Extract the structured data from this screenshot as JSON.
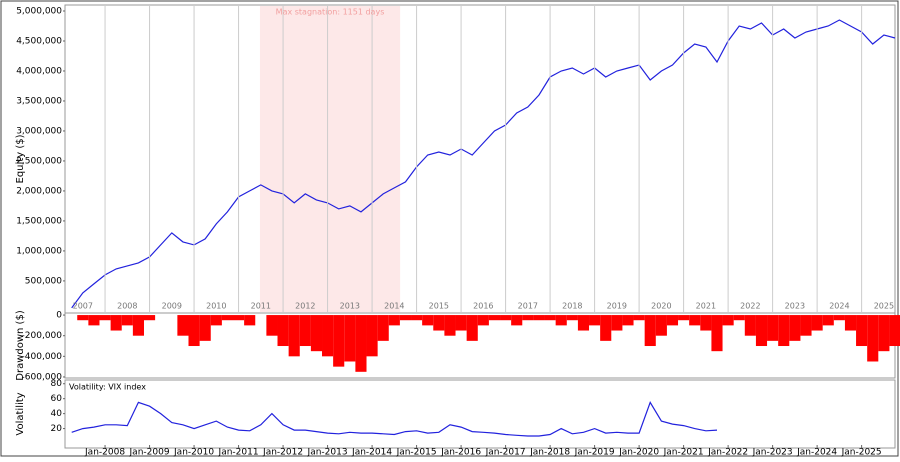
{
  "chart_data": [
    {
      "type": "line",
      "y_label": "Equity ($)",
      "annotation": {
        "text": "Max stagnation: 1151 days",
        "x": [
          2011.48,
          2014.63
        ],
        "color": "#fde8e8"
      },
      "xlim": [
        2007.1,
        2025.75
      ],
      "xticks": [
        {
          "value": 2007.5,
          "label": "2007"
        },
        {
          "value": 2008.5,
          "label": "2008"
        },
        {
          "value": 2009.5,
          "label": "2009"
        },
        {
          "value": 2010.5,
          "label": "2010"
        },
        {
          "value": 2011.5,
          "label": "2011"
        },
        {
          "value": 2012.5,
          "label": "2012"
        },
        {
          "value": 2013.5,
          "label": "2013"
        },
        {
          "value": 2014.5,
          "label": "2014"
        },
        {
          "value": 2015.5,
          "label": "2015"
        },
        {
          "value": 2016.5,
          "label": "2016"
        },
        {
          "value": 2017.5,
          "label": "2017"
        },
        {
          "value": 2018.5,
          "label": "2018"
        },
        {
          "value": 2019.5,
          "label": "2019"
        },
        {
          "value": 2020.5,
          "label": "2020"
        },
        {
          "value": 2021.5,
          "label": "2021"
        },
        {
          "value": 2022.5,
          "label": "2022"
        },
        {
          "value": 2023.5,
          "label": "2023"
        },
        {
          "value": 2024.5,
          "label": "2024"
        },
        {
          "value": 2025.5,
          "label": "2025"
        }
      ],
      "ylim": [
        -35000,
        5100000
      ],
      "yticks": [
        {
          "value": 500000,
          "label": "500,000"
        },
        {
          "value": 1000000,
          "label": "1,000,000"
        },
        {
          "value": 1500000,
          "label": "1,500,000"
        },
        {
          "value": 2000000,
          "label": "2,000,000"
        },
        {
          "value": 2500000,
          "label": "2,500,000"
        },
        {
          "value": 3000000,
          "label": "3,000,000"
        },
        {
          "value": 3500000,
          "label": "3,500,000"
        },
        {
          "value": 4000000,
          "label": "4,000,000"
        },
        {
          "value": 4500000,
          "label": "4,500,000"
        },
        {
          "value": 5000000,
          "label": "5,000,000"
        }
      ],
      "x": [
        2007.25,
        2007.5,
        2007.75,
        2008,
        2008.25,
        2008.5,
        2008.75,
        2009,
        2009.25,
        2009.5,
        2009.75,
        2010,
        2010.25,
        2010.5,
        2010.75,
        2011,
        2011.25,
        2011.5,
        2011.75,
        2012,
        2012.25,
        2012.5,
        2012.75,
        2013,
        2013.25,
        2013.5,
        2013.75,
        2014,
        2014.25,
        2014.5,
        2014.75,
        2015,
        2015.25,
        2015.5,
        2015.75,
        2016,
        2016.25,
        2016.5,
        2016.75,
        2017,
        2017.25,
        2017.5,
        2017.75,
        2018,
        2018.25,
        2018.5,
        2018.75,
        2019,
        2019.25,
        2019.5,
        2019.75,
        2020,
        2020.25,
        2020.5,
        2020.75,
        2021,
        2021.25,
        2021.5,
        2021.75,
        2022,
        2022.25,
        2022.5,
        2022.75,
        2023,
        2023.25,
        2023.5,
        2023.75,
        2024,
        2024.25,
        2024.5,
        2024.75,
        2025,
        2025.25,
        2025.5,
        2025.75
      ],
      "series": [
        {
          "color": "#2222dd",
          "values": [
            50000,
            300000,
            450000,
            600000,
            700000,
            750000,
            800000,
            900000,
            1100000,
            1300000,
            1150000,
            1100000,
            1200000,
            1450000,
            1650000,
            1900000,
            2000000,
            2100000,
            2000000,
            1950000,
            1800000,
            1950000,
            1850000,
            1800000,
            1700000,
            1750000,
            1650000,
            1800000,
            1950000,
            2050000,
            2150000,
            2400000,
            2600000,
            2650000,
            2600000,
            2700000,
            2600000,
            2800000,
            3000000,
            3100000,
            3300000,
            3400000,
            3600000,
            3900000,
            4000000,
            4050000,
            3950000,
            4050000,
            3900000,
            4000000,
            4050000,
            4100000,
            3850000,
            4000000,
            4100000,
            4300000,
            4450000,
            4400000,
            4150000,
            4500000,
            4750000,
            4700000,
            4800000,
            4600000,
            4700000,
            4550000,
            4650000,
            4700000,
            4750000,
            4850000,
            4750000,
            4650000,
            4450000,
            4600000,
            4550000
          ]
        }
      ]
    },
    {
      "type": "bar",
      "y_label": "Drawdown ($)",
      "xlim": [
        2007.1,
        2025.75
      ],
      "ylim": [
        -610000,
        20000
      ],
      "yticks": [
        {
          "value": 0,
          "label": "0"
        },
        {
          "value": -200000,
          "label": "-200,000"
        },
        {
          "value": -400000,
          "label": "-400,000"
        },
        {
          "value": -600000,
          "label": "-600,000"
        }
      ],
      "x": [
        2007.25,
        2007.5,
        2007.75,
        2008,
        2008.25,
        2008.5,
        2008.75,
        2009,
        2009.25,
        2009.5,
        2009.75,
        2010,
        2010.25,
        2010.5,
        2010.75,
        2011,
        2011.25,
        2011.5,
        2011.75,
        2012,
        2012.25,
        2012.5,
        2012.75,
        2013,
        2013.25,
        2013.5,
        2013.75,
        2014,
        2014.25,
        2014.5,
        2014.75,
        2015,
        2015.25,
        2015.5,
        2015.75,
        2016,
        2016.25,
        2016.5,
        2016.75,
        2017,
        2017.25,
        2017.5,
        2017.75,
        2018,
        2018.25,
        2018.5,
        2018.75,
        2019,
        2019.25,
        2019.5,
        2019.75,
        2020,
        2020.25,
        2020.5,
        2020.75,
        2021,
        2021.25,
        2021.5,
        2021.75,
        2022,
        2022.25,
        2022.5,
        2022.75,
        2023,
        2023.25,
        2023.5,
        2023.75,
        2024,
        2024.25,
        2024.5,
        2024.75,
        2025,
        2025.25,
        2025.5,
        2025.75
      ],
      "series": [
        {
          "color": "#ff0000",
          "values": [
            0,
            -50000,
            -100000,
            -50000,
            -150000,
            -100000,
            -200000,
            -50000,
            0,
            0,
            -200000,
            -300000,
            -250000,
            -100000,
            -50000,
            -50000,
            -100000,
            0,
            -200000,
            -300000,
            -400000,
            -300000,
            -350000,
            -400000,
            -500000,
            -450000,
            -550000,
            -400000,
            -250000,
            -100000,
            -50000,
            -50000,
            -100000,
            -150000,
            -200000,
            -150000,
            -250000,
            -100000,
            -50000,
            -50000,
            -100000,
            -50000,
            -50000,
            -50000,
            -100000,
            -50000,
            -150000,
            -100000,
            -250000,
            -150000,
            -100000,
            -50000,
            -300000,
            -200000,
            -100000,
            -50000,
            -100000,
            -150000,
            -350000,
            -100000,
            -50000,
            -200000,
            -300000,
            -250000,
            -300000,
            -250000,
            -200000,
            -150000,
            -100000,
            -50000,
            -150000,
            -300000,
            -450000,
            -350000,
            -300000
          ]
        }
      ]
    },
    {
      "type": "line",
      "y_label": "Volatility",
      "xlim": [
        2007.1,
        2025.75
      ],
      "xticks": [
        {
          "value": 2008,
          "label": "Jan-2008"
        },
        {
          "value": 2009,
          "label": "Jan-2009"
        },
        {
          "value": 2010,
          "label": "Jan-2010"
        },
        {
          "value": 2011,
          "label": "Jan-2011"
        },
        {
          "value": 2012,
          "label": "Jan-2012"
        },
        {
          "value": 2013,
          "label": "Jan-2013"
        },
        {
          "value": 2014,
          "label": "Jan-2014"
        },
        {
          "value": 2015,
          "label": "Jan-2015"
        },
        {
          "value": 2016,
          "label": "Jan-2016"
        },
        {
          "value": 2017,
          "label": "Jan-2017"
        },
        {
          "value": 2018,
          "label": "Jan-2018"
        },
        {
          "value": 2019,
          "label": "Jan-2019"
        },
        {
          "value": 2020,
          "label": "Jan-2020"
        },
        {
          "value": 2021,
          "label": "Jan-2021"
        },
        {
          "value": 2022,
          "label": "Jan-2022"
        },
        {
          "value": 2023,
          "label": "Jan-2023"
        },
        {
          "value": 2024,
          "label": "Jan-2024"
        },
        {
          "value": 2025,
          "label": "Jan-2025"
        }
      ],
      "ylim": [
        -6,
        85
      ],
      "yticks": [
        20,
        40,
        60,
        80
      ],
      "x": [
        2007.25,
        2007.5,
        2007.75,
        2008,
        2008.25,
        2008.5,
        2008.75,
        2009,
        2009.25,
        2009.5,
        2009.75,
        2010,
        2010.25,
        2010.5,
        2010.75,
        2011,
        2011.25,
        2011.5,
        2011.75,
        2012,
        2012.25,
        2012.5,
        2012.75,
        2013,
        2013.25,
        2013.5,
        2013.75,
        2014,
        2014.25,
        2014.5,
        2014.75,
        2015,
        2015.25,
        2015.5,
        2015.75,
        2016,
        2016.25,
        2016.5,
        2016.75,
        2017,
        2017.25,
        2017.5,
        2017.75,
        2018,
        2018.25,
        2018.5,
        2018.75,
        2019,
        2019.25,
        2019.5,
        2019.75,
        2020,
        2020.25,
        2020.5,
        2020.75,
        2021,
        2021.25,
        2021.5,
        2021.75,
        2022,
        2022.25,
        2022.5,
        2022.75,
        2023,
        2023.25,
        2023.5,
        2023.75,
        2024,
        2024.25,
        2024.5,
        2024.75,
        2025,
        2025.25,
        2025.5,
        2025.75
      ],
      "series": [
        {
          "name": "Volatility: VIX index",
          "color": "#2222dd",
          "values": [
            15,
            20,
            22,
            25,
            25,
            24,
            55,
            50,
            40,
            28,
            25,
            20,
            25,
            30,
            22,
            18,
            17,
            25,
            40,
            25,
            18,
            18,
            16,
            14,
            13,
            15,
            14,
            14,
            13,
            12,
            16,
            17,
            14,
            15,
            25,
            22,
            16,
            15,
            14,
            12,
            11,
            10,
            10,
            12,
            20,
            13,
            15,
            20,
            14,
            15,
            14,
            14,
            55,
            30,
            26,
            24,
            20,
            17,
            18,
            null,
            null,
            null,
            null,
            null,
            null,
            null,
            null,
            null,
            null,
            null,
            null,
            null,
            null,
            null,
            null
          ]
        }
      ]
    }
  ]
}
